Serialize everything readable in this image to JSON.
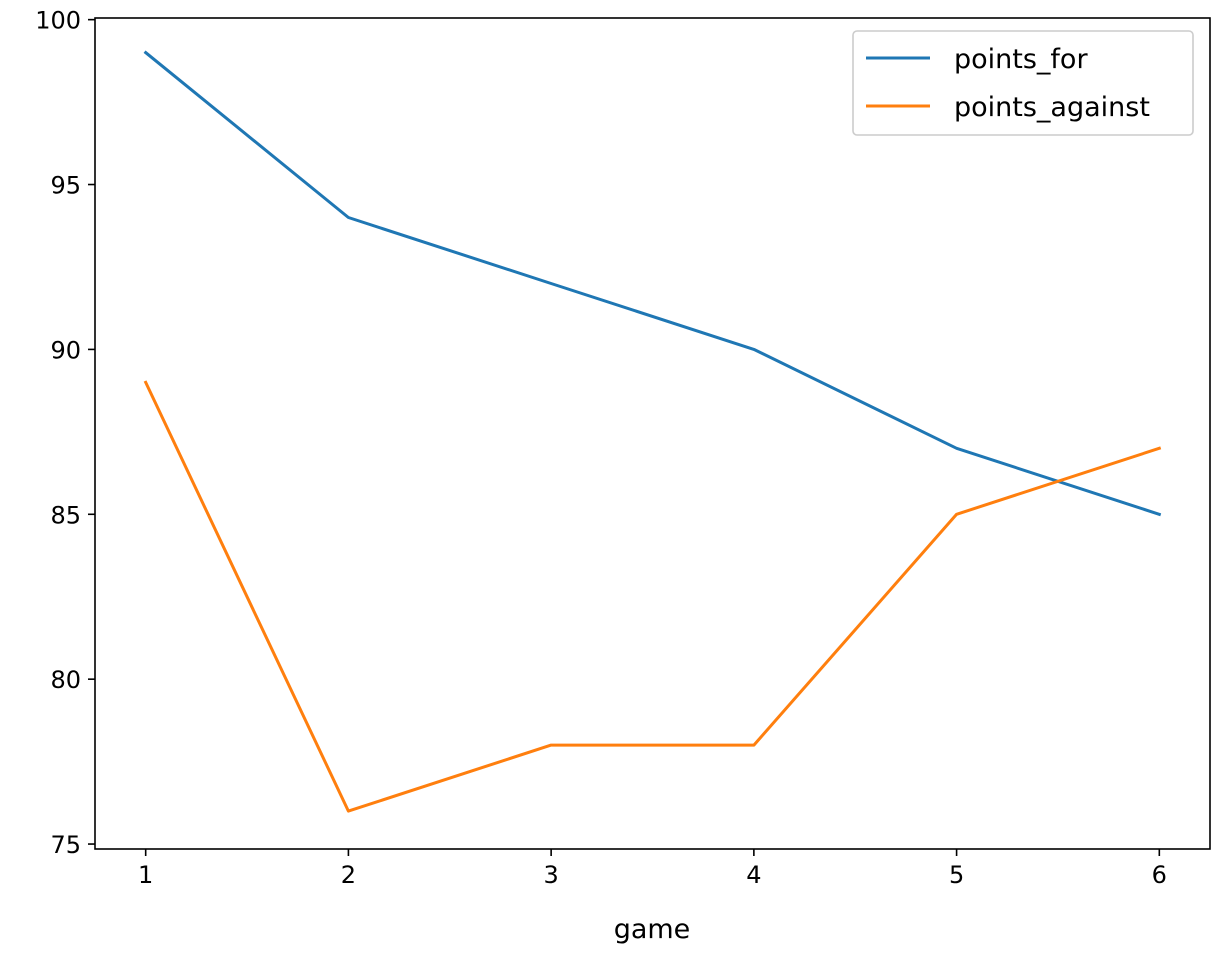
{
  "chart_data": {
    "type": "line",
    "title": "",
    "xlabel": "game",
    "ylabel": "",
    "x": [
      1,
      2,
      3,
      4,
      5,
      6
    ],
    "series": [
      {
        "name": "points_for",
        "values": [
          99,
          94,
          92,
          90,
          87,
          85
        ],
        "color": "#1f77b4"
      },
      {
        "name": "points_against",
        "values": [
          89,
          76,
          78,
          78,
          85,
          87
        ],
        "color": "#ff7f0e"
      }
    ],
    "xlim": [
      0.75,
      6.25
    ],
    "ylim": [
      74.85,
      100.05
    ],
    "x_ticks": [
      1,
      2,
      3,
      4,
      5,
      6
    ],
    "y_ticks": [
      75,
      80,
      85,
      90,
      95,
      100
    ],
    "grid": false,
    "legend_position": "top-right"
  }
}
